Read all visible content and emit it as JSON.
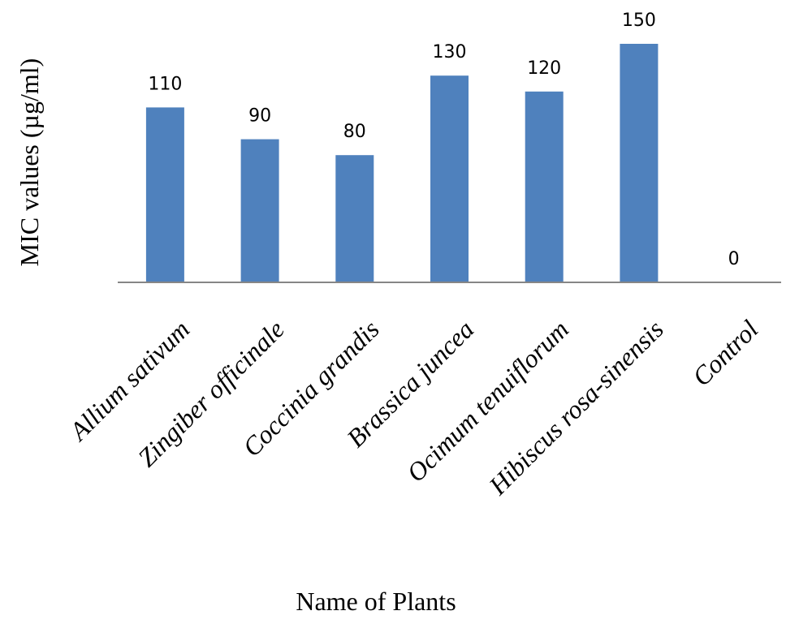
{
  "chart_data": {
    "type": "bar",
    "title": "",
    "xlabel": "Name of Plants",
    "ylabel": "MIC values (µg/ml)",
    "categories": [
      "Allium sativum",
      "Zingiber officinale",
      "Coccinia grandis",
      "Brassica juncea",
      "Ocimum tenuiflorum",
      "Hibiscus rosa-sinensis",
      "Control"
    ],
    "values": [
      110,
      90,
      80,
      130,
      120,
      150,
      0
    ],
    "data_labels": [
      "110",
      "90",
      "80",
      "130",
      "120",
      "150",
      "0"
    ],
    "ylim": [
      0,
      150
    ],
    "grid": false,
    "legend": "none",
    "bar_color": "#4F81BD",
    "axis_color": "#868686"
  }
}
